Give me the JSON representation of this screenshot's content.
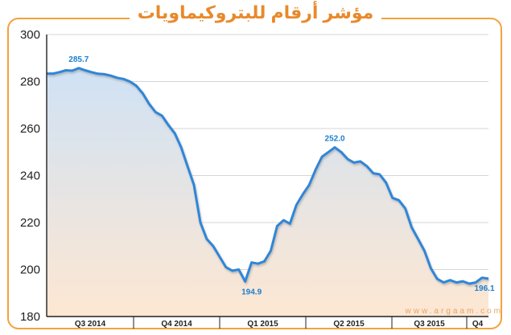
{
  "title": "مؤشر أرقام للبتروكيماويات",
  "watermark": "www.argaam.com",
  "colors": {
    "accent": "#f3a23c",
    "title": "#e8892b",
    "line": "#2f86d8",
    "fill_top": "#cfe2f5",
    "fill_bottom": "#fde7d2",
    "label": "#1b7fd0"
  },
  "chart_data": {
    "type": "area",
    "title": "مؤشر أرقام للبتروكيماويات",
    "xlabel": "",
    "ylabel": "",
    "ylim": [
      180,
      300
    ],
    "yticks": [
      180,
      200,
      220,
      240,
      260,
      280,
      300
    ],
    "grid": {
      "horizontal": true,
      "vertical": false
    },
    "quarter_labels": [
      "Q3 2014",
      "Q4 2014",
      "Q1 2015",
      "Q2 2015",
      "Q3 2015",
      "Q4"
    ],
    "series": [
      {
        "values": [
          283.4,
          283.4,
          284.0,
          284.8,
          284.6,
          285.7,
          284.8,
          284.0,
          283.3,
          283.1,
          282.5,
          281.6,
          281.1,
          280.0,
          278.2,
          275.0,
          270.5,
          267.0,
          265.5,
          261.5,
          258.0,
          252.0,
          244.0,
          236.0,
          220.0,
          213.0,
          210.0,
          205.5,
          201.0,
          199.5,
          200.0,
          194.9,
          203.0,
          202.5,
          203.5,
          208.0,
          218.5,
          221.0,
          219.5,
          227.5,
          232.0,
          236.0,
          242.5,
          248.0,
          250.0,
          252.0,
          250.0,
          247.0,
          245.5,
          246.0,
          244.0,
          241.0,
          240.5,
          237.0,
          230.5,
          229.5,
          226.0,
          218.0,
          213.0,
          208.0,
          200.5,
          196.0,
          194.5,
          195.5,
          194.5,
          195.0,
          194.0,
          194.5,
          196.5,
          196.1
        ]
      }
    ],
    "annotations": [
      {
        "index": 5,
        "text": "285.7"
      },
      {
        "index": 31,
        "text": "194.9"
      },
      {
        "index": 45,
        "text": "252.0"
      },
      {
        "index": 69,
        "text": "196.1"
      }
    ]
  }
}
